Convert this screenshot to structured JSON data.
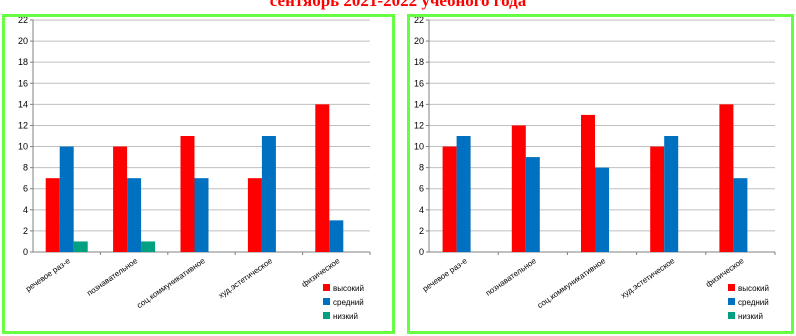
{
  "title": "сентябрь 2021-2022 учебного года",
  "colors": {
    "высокий": "#ff0000",
    "средний": "#0070c0",
    "низкий": "#00a080"
  },
  "chart_data": [
    {
      "type": "bar",
      "categories": [
        "речевое раз-е",
        "познавательное",
        "соц.коммуникативное",
        "худ.эстетическое",
        "физическое"
      ],
      "series": [
        {
          "name": "высокий",
          "values": [
            7,
            10,
            11,
            7,
            14
          ]
        },
        {
          "name": "средний",
          "values": [
            10,
            7,
            7,
            11,
            3
          ]
        },
        {
          "name": "низкий",
          "values": [
            1,
            1,
            0,
            0,
            0
          ]
        }
      ],
      "ylim": [
        0,
        22
      ],
      "yticks": [
        0,
        2,
        4,
        6,
        8,
        10,
        12,
        14,
        16,
        18,
        20,
        22
      ],
      "grid": true,
      "legend": "bottom-right"
    },
    {
      "type": "bar",
      "categories": [
        "речевое раз-е",
        "познавательное",
        "соц.коммуникативное",
        "худ.эстетическое",
        "физическое"
      ],
      "series": [
        {
          "name": "высокий",
          "values": [
            10,
            12,
            13,
            10,
            14
          ]
        },
        {
          "name": "средний",
          "values": [
            11,
            9,
            8,
            11,
            7
          ]
        },
        {
          "name": "низкий",
          "values": [
            0,
            0,
            0,
            0,
            0
          ]
        }
      ],
      "ylim": [
        0,
        22
      ],
      "yticks": [
        0,
        2,
        4,
        6,
        8,
        10,
        12,
        14,
        16,
        18,
        20,
        22
      ],
      "grid": true,
      "legend": "bottom-right"
    }
  ]
}
